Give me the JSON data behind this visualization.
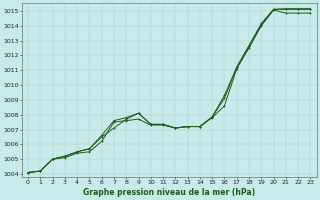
{
  "title": "Graphe pression niveau de la mer (hPa)",
  "bg_color": "#c8eaea",
  "plot_bg_color": "#c8eaea",
  "grid_color": "#b0d0d0",
  "line_color": "#1a5c1a",
  "xlim": [
    -0.5,
    23.5
  ],
  "ylim": [
    1003.8,
    1015.5
  ],
  "xticks": [
    0,
    1,
    2,
    3,
    4,
    5,
    6,
    7,
    8,
    9,
    10,
    11,
    12,
    13,
    14,
    15,
    16,
    17,
    18,
    19,
    20,
    21,
    22,
    23
  ],
  "yticks": [
    1004,
    1005,
    1006,
    1007,
    1008,
    1009,
    1010,
    1011,
    1012,
    1013,
    1014,
    1015
  ],
  "line1_x": [
    0,
    1,
    2,
    3,
    4,
    5,
    6,
    7,
    8,
    9,
    10,
    11,
    12,
    13,
    14,
    15,
    16,
    17,
    18,
    19,
    20,
    21,
    22,
    23
  ],
  "line1_y": [
    1004.1,
    1004.2,
    1005.0,
    1005.1,
    1005.4,
    1005.5,
    1006.2,
    1007.5,
    1007.6,
    1007.7,
    1007.3,
    1007.3,
    1007.1,
    1007.2,
    1007.2,
    1007.8,
    1008.6,
    1011.1,
    1012.5,
    1014.0,
    1015.05,
    1014.85,
    1014.85,
    1014.85
  ],
  "line2_x": [
    0,
    1,
    2,
    3,
    4,
    5,
    6,
    7,
    8,
    9,
    10,
    11,
    12,
    13,
    14,
    15,
    16,
    17,
    18,
    19,
    20,
    21,
    22,
    23
  ],
  "line2_y": [
    1004.1,
    1004.2,
    1005.0,
    1005.2,
    1005.5,
    1005.7,
    1006.5,
    1007.1,
    1007.7,
    1008.1,
    1007.35,
    1007.35,
    1007.1,
    1007.2,
    1007.2,
    1007.85,
    1009.3,
    1011.2,
    1012.65,
    1014.05,
    1015.1,
    1015.1,
    1015.1,
    1015.1
  ],
  "line3_x": [
    0,
    1,
    2,
    3,
    4,
    5,
    6,
    7,
    8,
    9,
    10,
    11,
    12,
    13,
    14,
    15,
    16,
    17,
    18,
    19,
    20,
    21,
    22,
    23
  ],
  "line3_y": [
    1004.1,
    1004.2,
    1005.0,
    1005.2,
    1005.5,
    1005.7,
    1006.6,
    1007.6,
    1007.8,
    1008.1,
    1007.35,
    1007.35,
    1007.1,
    1007.2,
    1007.2,
    1007.85,
    1009.1,
    1011.2,
    1012.65,
    1014.15,
    1015.1,
    1015.15,
    1015.15,
    1015.15
  ],
  "marker_size": 2.0,
  "marker_lw": 0.6,
  "line_width": 0.7,
  "xlabel_fontsize": 5.5,
  "tick_fontsize": 4.5,
  "fig_width": 3.2,
  "fig_height": 2.0,
  "dpi": 100
}
